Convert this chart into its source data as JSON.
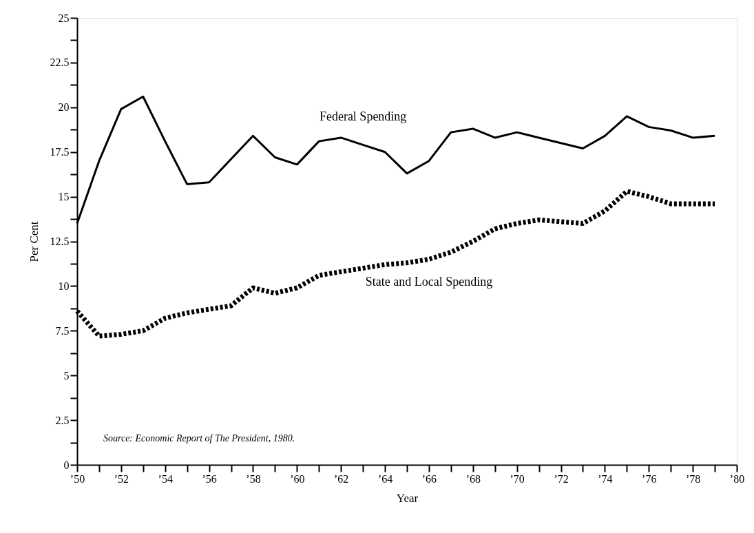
{
  "chart_data": {
    "type": "line",
    "xlabel": "Year",
    "ylabel": "Per Cent",
    "x": [
      1950,
      1951,
      1952,
      1953,
      1954,
      1955,
      1956,
      1957,
      1958,
      1959,
      1960,
      1961,
      1962,
      1963,
      1964,
      1965,
      1966,
      1967,
      1968,
      1969,
      1970,
      1971,
      1972,
      1973,
      1974,
      1975,
      1976,
      1977,
      1978,
      1979
    ],
    "series": [
      {
        "name": "Federal Spending",
        "color": "#000000",
        "line_style": "solid",
        "values": [
          13.5,
          17.0,
          19.9,
          20.6,
          18.1,
          15.7,
          15.8,
          17.1,
          18.4,
          17.2,
          16.8,
          18.1,
          18.3,
          17.9,
          17.5,
          16.3,
          17.0,
          18.6,
          18.8,
          18.3,
          18.6,
          18.3,
          18.0,
          17.7,
          18.4,
          19.5,
          18.9,
          18.7,
          18.3,
          18.4
        ]
      },
      {
        "name": "State and Local Spending",
        "color": "#000000",
        "line_style": "dotted",
        "values": [
          8.6,
          7.2,
          7.3,
          7.5,
          8.2,
          8.5,
          8.7,
          8.9,
          9.9,
          9.6,
          9.9,
          10.6,
          10.8,
          11.0,
          11.2,
          11.3,
          11.5,
          11.9,
          12.5,
          13.2,
          13.5,
          13.7,
          13.6,
          13.5,
          14.2,
          15.3,
          15.0,
          14.6,
          14.6,
          14.6
        ]
      }
    ],
    "xlim": [
      1950,
      1980
    ],
    "xticks": [
      {
        "value": 1950,
        "label": "’50"
      },
      {
        "value": 1951,
        "label": null
      },
      {
        "value": 1952,
        "label": "’52"
      },
      {
        "value": 1953,
        "label": null
      },
      {
        "value": 1954,
        "label": "’54"
      },
      {
        "value": 1955,
        "label": null
      },
      {
        "value": 1956,
        "label": "’56"
      },
      {
        "value": 1957,
        "label": null
      },
      {
        "value": 1958,
        "label": "’58"
      },
      {
        "value": 1959,
        "label": null
      },
      {
        "value": 1960,
        "label": "’60"
      },
      {
        "value": 1961,
        "label": null
      },
      {
        "value": 1962,
        "label": "’62"
      },
      {
        "value": 1963,
        "label": null
      },
      {
        "value": 1964,
        "label": "’64"
      },
      {
        "value": 1965,
        "label": null
      },
      {
        "value": 1966,
        "label": "’66"
      },
      {
        "value": 1967,
        "label": null
      },
      {
        "value": 1968,
        "label": "’68"
      },
      {
        "value": 1969,
        "label": null
      },
      {
        "value": 1970,
        "label": "’70"
      },
      {
        "value": 1971,
        "label": null
      },
      {
        "value": 1972,
        "label": "’72"
      },
      {
        "value": 1973,
        "label": null
      },
      {
        "value": 1974,
        "label": "’74"
      },
      {
        "value": 1975,
        "label": null
      },
      {
        "value": 1976,
        "label": "’76"
      },
      {
        "value": 1977,
        "label": null
      },
      {
        "value": 1978,
        "label": "’78"
      },
      {
        "value": 1979,
        "label": null
      },
      {
        "value": 1980,
        "label": "’80"
      }
    ],
    "ylim": [
      0,
      25
    ],
    "yticks": [
      0,
      {
        "value": 1.25,
        "label": null
      },
      2.5,
      {
        "value": 3.75,
        "label": null
      },
      5,
      {
        "value": 6.25,
        "label": null
      },
      7.5,
      {
        "value": 8.75,
        "label": null
      },
      10,
      {
        "value": 11.25,
        "label": null
      },
      12.5,
      {
        "value": 13.75,
        "label": null
      },
      15,
      {
        "value": 16.25,
        "label": null
      },
      17.5,
      {
        "value": 18.75,
        "label": null
      },
      20,
      {
        "value": 21.25,
        "label": null
      },
      22.5,
      {
        "value": 23.75,
        "label": null
      },
      25
    ],
    "grid": false,
    "marker": "none",
    "annotations": [
      "Source: Economic Report of The President, 1980."
    ]
  }
}
